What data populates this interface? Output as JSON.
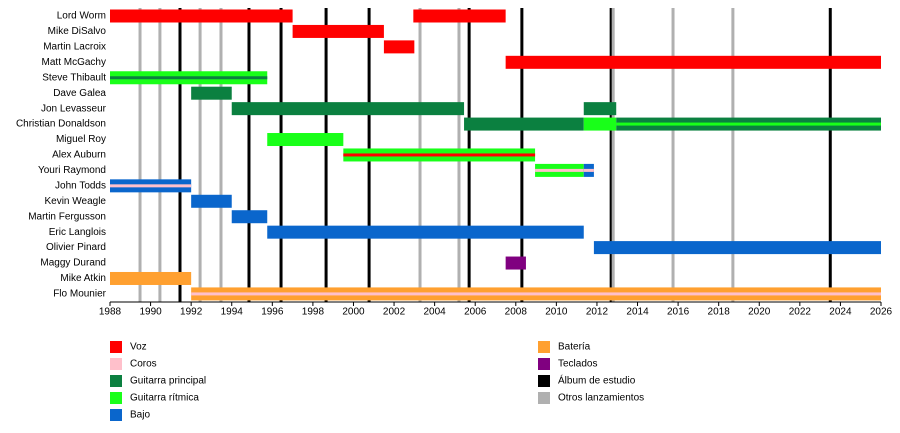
{
  "chart_data": {
    "type": "timeline",
    "xlim": [
      1988,
      2026
    ],
    "xticks": [
      1988,
      1990,
      1992,
      1994,
      1996,
      1998,
      2000,
      2002,
      2004,
      2006,
      2008,
      2010,
      2012,
      2014,
      2016,
      2018,
      2020,
      2022,
      2024,
      2026
    ],
    "roles": [
      {
        "name": "Voz",
        "color": "#ff0000"
      },
      {
        "name": "Coros",
        "color": "#ffc0cb"
      },
      {
        "name": "Guitarra principal",
        "color": "#0b8040"
      },
      {
        "name": "Guitarra rítmica",
        "color": "#19ff19"
      },
      {
        "name": "Bajo",
        "color": "#0a66cc"
      },
      {
        "name": "Batería",
        "color": "#ffa030"
      },
      {
        "name": "Teclados",
        "color": "#800080"
      }
    ],
    "events": [
      {
        "name": "Álbum de estudio",
        "color": "#000000",
        "years": [
          1991.45,
          1994.85,
          1996.43,
          1998.65,
          2000.77,
          2005.7,
          2008.3,
          2012.7,
          2023.5
        ]
      },
      {
        "name": "Otros lanzamientos",
        "color": "#b0b0b0",
        "years": [
          1989.48,
          1990.46,
          1992.44,
          1993.47,
          2003.28,
          2005.2,
          2012.8,
          2015.75,
          2018.7
        ]
      }
    ],
    "members": [
      {
        "name": "Lord Worm",
        "bars": [
          {
            "start": 1988,
            "end": 1997,
            "role": "Voz"
          },
          {
            "start": 2002.95,
            "end": 2007.5,
            "role": "Voz"
          }
        ]
      },
      {
        "name": "Mike DiSalvo",
        "bars": [
          {
            "start": 1997,
            "end": 2001.5,
            "role": "Voz"
          }
        ]
      },
      {
        "name": "Martin Lacroix",
        "bars": [
          {
            "start": 2001.5,
            "end": 2003,
            "role": "Voz"
          }
        ]
      },
      {
        "name": "Matt McGachy",
        "bars": [
          {
            "start": 2007.5,
            "end": 2026,
            "role": "Voz"
          }
        ]
      },
      {
        "name": "Steve Thibault",
        "bars": [
          {
            "start": 1988,
            "end": 1995.75,
            "role": "Guitarra rítmica",
            "stripe": "Guitarra principal"
          }
        ]
      },
      {
        "name": "Dave Galea",
        "bars": [
          {
            "start": 1992,
            "end": 1994,
            "role": "Guitarra principal"
          }
        ]
      },
      {
        "name": "Jon Levasseur",
        "bars": [
          {
            "start": 1994,
            "end": 2005.45,
            "role": "Guitarra principal"
          },
          {
            "start": 2011.35,
            "end": 2012.95,
            "role": "Guitarra principal"
          }
        ]
      },
      {
        "name": "Christian Donaldson",
        "bars": [
          {
            "start": 2005.45,
            "end": 2011.35,
            "role": "Guitarra principal"
          },
          {
            "start": 2011.35,
            "end": 2012.95,
            "role": "Guitarra rítmica"
          },
          {
            "start": 2012.95,
            "end": 2026,
            "role": "Guitarra principal",
            "stripe": "Guitarra rítmica"
          }
        ]
      },
      {
        "name": "Miguel Roy",
        "bars": [
          {
            "start": 1995.75,
            "end": 1999.5,
            "role": "Guitarra rítmica"
          }
        ]
      },
      {
        "name": "Alex Auburn",
        "bars": [
          {
            "start": 1999.5,
            "end": 2008.95,
            "role": "Guitarra rítmica",
            "stripe": "Voz"
          }
        ]
      },
      {
        "name": "Youri Raymond",
        "bars": [
          {
            "start": 2008.95,
            "end": 2011.35,
            "role": "Guitarra rítmica",
            "stripe": "Coros"
          },
          {
            "start": 2011.35,
            "end": 2011.85,
            "role": "Bajo",
            "stripe": "Coros"
          }
        ]
      },
      {
        "name": "John Todds",
        "bars": [
          {
            "start": 1988,
            "end": 1992,
            "role": "Bajo",
            "stripe": "Coros"
          }
        ]
      },
      {
        "name": "Kevin Weagle",
        "bars": [
          {
            "start": 1992,
            "end": 1994,
            "role": "Bajo"
          }
        ]
      },
      {
        "name": "Martin Fergusson",
        "bars": [
          {
            "start": 1994,
            "end": 1995.75,
            "role": "Bajo"
          }
        ]
      },
      {
        "name": "Eric Langlois",
        "bars": [
          {
            "start": 1995.75,
            "end": 2011.35,
            "role": "Bajo"
          }
        ]
      },
      {
        "name": "Olivier Pinard",
        "bars": [
          {
            "start": 2011.85,
            "end": 2026,
            "role": "Bajo"
          }
        ]
      },
      {
        "name": "Maggy Durand",
        "bars": [
          {
            "start": 2007.5,
            "end": 2008.5,
            "role": "Teclados"
          }
        ]
      },
      {
        "name": "Mike Atkin",
        "bars": [
          {
            "start": 1988,
            "end": 1992,
            "role": "Batería"
          }
        ]
      },
      {
        "name": "Flo Mounier",
        "bars": [
          {
            "start": 1992,
            "end": 2026,
            "role": "Batería",
            "stripe": "Coros"
          }
        ]
      }
    ]
  }
}
